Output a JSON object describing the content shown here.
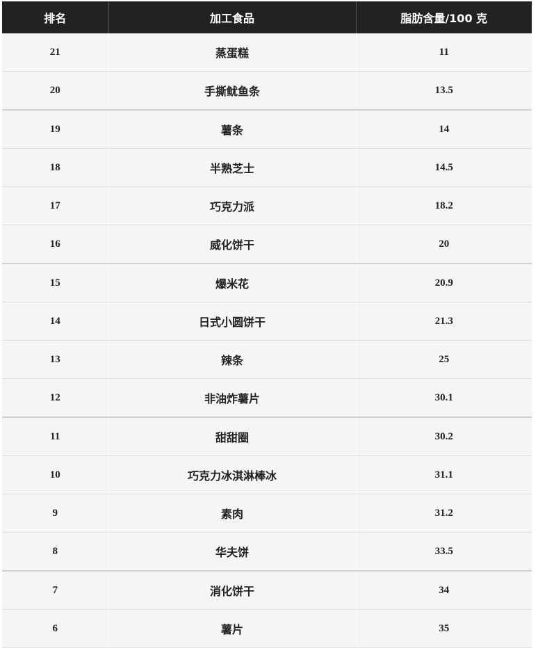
{
  "headers": [
    "排名",
    "加工食品",
    "脂肪含量/100 克"
  ],
  "rows": [
    {
      "rank": "21",
      "food": "蒸蛋糕",
      "fat": "11"
    },
    {
      "rank": "20",
      "food": "手撕鱿鱼条",
      "fat": "13.5"
    },
    {
      "rank": "19",
      "food": "薯条",
      "fat": "14"
    },
    {
      "rank": "18",
      "food": "半熟芝士",
      "fat": "14.5"
    },
    {
      "rank": "17",
      "food": "巧克力派",
      "fat": "18.2"
    },
    {
      "rank": "16",
      "food": "威化饼干",
      "fat": "20"
    },
    {
      "rank": "15",
      "food": "爆米花",
      "fat": "20.9"
    },
    {
      "rank": "14",
      "food": "日式小圆饼干",
      "fat": "21.3"
    },
    {
      "rank": "13",
      "food": "辣条",
      "fat": "25"
    },
    {
      "rank": "12",
      "food": "非油炸薯片",
      "fat": "30.1"
    },
    {
      "rank": "11",
      "food": "甜甜圈",
      "fat": "30.2"
    },
    {
      "rank": "10",
      "food": "巧克力冰淇淋棒冰",
      "fat": "31.1"
    },
    {
      "rank": "9",
      "food": "素肉",
      "fat": "31.2"
    },
    {
      "rank": "8",
      "food": "华夫饼",
      "fat": "33.5"
    },
    {
      "rank": "7",
      "food": "消化饼干",
      "fat": "34"
    },
    {
      "rank": "6",
      "food": "薯片",
      "fat": "35"
    }
  ]
}
